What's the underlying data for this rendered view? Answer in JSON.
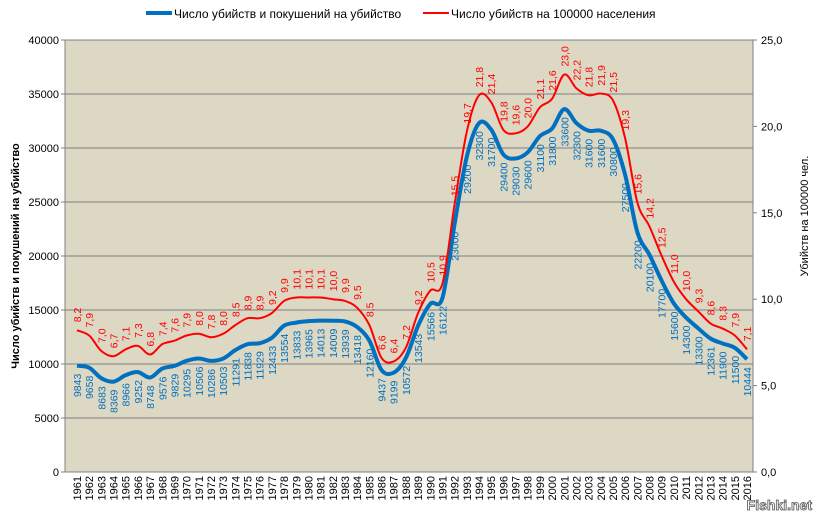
{
  "chart_data": {
    "type": "line",
    "title": "",
    "ylabel_left": "Число убийств и покушений на убийство",
    "ylabel_right": "Убийств на 100000 чел.",
    "ylim_left": [
      0,
      40000
    ],
    "ylim_right": [
      0,
      25
    ],
    "yticks_left": [
      "0",
      "5000",
      "10000",
      "15000",
      "20000",
      "25000",
      "30000",
      "35000",
      "40000"
    ],
    "yticks_right": [
      "0,0",
      "5,0",
      "10,0",
      "15,0",
      "20,0",
      "25,0"
    ],
    "grid": true,
    "legend_position": "top",
    "background": "#ddd8c4",
    "x": [
      1961,
      1962,
      1963,
      1964,
      1965,
      1966,
      1967,
      1968,
      1969,
      1970,
      1971,
      1972,
      1973,
      1974,
      1975,
      1976,
      1977,
      1978,
      1979,
      1980,
      1981,
      1982,
      1983,
      1984,
      1985,
      1986,
      1987,
      1988,
      1989,
      1990,
      1991,
      1992,
      1993,
      1994,
      1995,
      1996,
      1997,
      1998,
      1999,
      2000,
      2001,
      2002,
      2003,
      2004,
      2005,
      2006,
      2007,
      2008,
      2009,
      2010,
      2011,
      2012,
      2013,
      2014,
      2015,
      2016
    ],
    "series": [
      {
        "name": "Число убийств и покушений  на убийство",
        "axis": "left",
        "color": "#0070c0",
        "values": [
          9843,
          9658,
          8683,
          8369,
          8966,
          9252,
          8748,
          9576,
          9829,
          10295,
          10506,
          10286,
          10503,
          11291,
          11838,
          11929,
          12433,
          13554,
          13833,
          13965,
          14013,
          14009,
          13939,
          13418,
          12160,
          9437,
          9199,
          10572,
          13543,
          15566,
          16122,
          23000,
          29200,
          32300,
          31700,
          29400,
          29030,
          29600,
          31100,
          31800,
          33600,
          32300,
          31600,
          31600,
          30800,
          27500,
          22200,
          20100,
          17700,
          15600,
          14300,
          13300,
          12361,
          11900,
          11500,
          10444
        ]
      },
      {
        "name": "Число убийств на 100000 населения",
        "axis": "right",
        "color": "#ff0000",
        "values": [
          8.2,
          7.9,
          7.0,
          6.7,
          7.1,
          7.3,
          6.8,
          7.4,
          7.6,
          7.9,
          8.0,
          7.8,
          8.0,
          8.5,
          8.9,
          8.9,
          9.2,
          9.9,
          10.1,
          10.1,
          10.1,
          10.0,
          9.9,
          9.5,
          8.5,
          6.6,
          6.4,
          7.2,
          9.2,
          10.5,
          10.9,
          15.5,
          19.7,
          21.8,
          21.4,
          19.8,
          19.6,
          20.0,
          21.1,
          21.6,
          23.0,
          22.2,
          21.8,
          21.9,
          21.5,
          19.3,
          15.6,
          14.2,
          12.5,
          11.0,
          10.0,
          9.3,
          8.6,
          8.3,
          7.9,
          7.1
        ]
      }
    ]
  },
  "watermark": "Fishki.net"
}
